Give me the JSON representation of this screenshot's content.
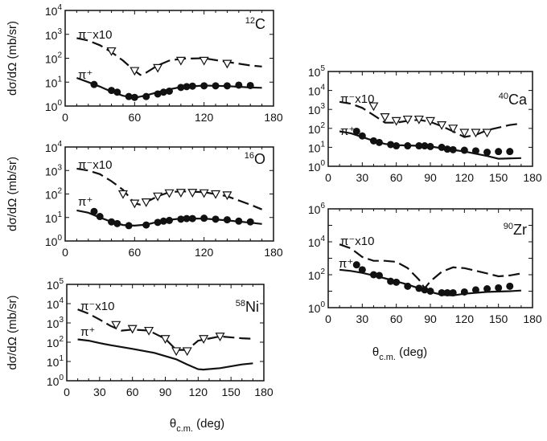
{
  "y_axis_label": "dσ/dΩ (mb/sr)",
  "x_axis_label_main": "θ",
  "x_axis_label_sub": "c.m.",
  "x_axis_label_unit": " (deg)",
  "pi_minus_label": "π⁻x10",
  "pi_plus_label": "π⁺",
  "chart_data": [
    {
      "type": "scatter",
      "nucleus_mass": "12",
      "nucleus_symbol": "C",
      "xlim": [
        0,
        180
      ],
      "xticks": [
        0,
        60,
        120,
        180
      ],
      "ylim": [
        1,
        10000
      ],
      "yscale": "log",
      "yticks_exp": [
        0,
        1,
        2,
        3,
        4
      ],
      "has_ylabel": true,
      "pi_plus_data": [
        [
          25,
          8
        ],
        [
          40,
          4.5
        ],
        [
          45,
          3.8
        ],
        [
          55,
          2.5
        ],
        [
          60,
          2.3
        ],
        [
          70,
          2.5
        ],
        [
          80,
          3.2
        ],
        [
          85,
          3.8
        ],
        [
          90,
          4.2
        ],
        [
          100,
          6
        ],
        [
          105,
          6.5
        ],
        [
          110,
          6.8
        ],
        [
          120,
          7
        ],
        [
          130,
          7
        ],
        [
          140,
          7
        ],
        [
          150,
          7.5
        ],
        [
          160,
          7.2
        ]
      ],
      "pi_plus_model": [
        [
          10,
          15
        ],
        [
          20,
          10
        ],
        [
          30,
          6.5
        ],
        [
          40,
          4
        ],
        [
          50,
          2.7
        ],
        [
          60,
          2.2
        ],
        [
          70,
          2.8
        ],
        [
          80,
          3.8
        ],
        [
          90,
          5
        ],
        [
          100,
          6.2
        ],
        [
          120,
          7.2
        ],
        [
          140,
          6.8
        ],
        [
          160,
          6
        ],
        [
          170,
          5.8
        ]
      ],
      "pi_minus_data": [
        [
          40,
          200
        ],
        [
          60,
          30
        ],
        [
          80,
          40
        ],
        [
          100,
          80
        ],
        [
          120,
          80
        ],
        [
          140,
          60
        ]
      ],
      "pi_minus_model": [
        [
          10,
          700
        ],
        [
          20,
          550
        ],
        [
          30,
          350
        ],
        [
          40,
          180
        ],
        [
          50,
          80
        ],
        [
          60,
          30
        ],
        [
          65,
          20
        ],
        [
          70,
          25
        ],
        [
          80,
          50
        ],
        [
          90,
          80
        ],
        [
          100,
          95
        ],
        [
          120,
          100
        ],
        [
          140,
          70
        ],
        [
          160,
          50
        ],
        [
          170,
          45
        ]
      ]
    },
    {
      "type": "scatter",
      "nucleus_mass": "16",
      "nucleus_symbol": "O",
      "xlim": [
        0,
        180
      ],
      "xticks": [
        0,
        60,
        120,
        180
      ],
      "ylim": [
        1,
        10000
      ],
      "yscale": "log",
      "yticks_exp": [
        0,
        1,
        2,
        3,
        4
      ],
      "has_ylabel": true,
      "pi_plus_data": [
        [
          25,
          18
        ],
        [
          30,
          11
        ],
        [
          40,
          6.5
        ],
        [
          45,
          5.5
        ],
        [
          55,
          4.5
        ],
        [
          70,
          4.8
        ],
        [
          80,
          6.2
        ],
        [
          85,
          7
        ],
        [
          90,
          7.5
        ],
        [
          100,
          8.5
        ],
        [
          105,
          9
        ],
        [
          110,
          9
        ],
        [
          120,
          9.3
        ],
        [
          130,
          8.5
        ],
        [
          140,
          8
        ],
        [
          150,
          7
        ],
        [
          160,
          6.5
        ]
      ],
      "pi_plus_model": [
        [
          10,
          20
        ],
        [
          20,
          16
        ],
        [
          30,
          10
        ],
        [
          40,
          6.5
        ],
        [
          50,
          4.8
        ],
        [
          60,
          4.5
        ],
        [
          70,
          5
        ],
        [
          80,
          6.5
        ],
        [
          90,
          8
        ],
        [
          100,
          9
        ],
        [
          120,
          9
        ],
        [
          140,
          7.5
        ],
        [
          160,
          6
        ],
        [
          170,
          5.3
        ]
      ],
      "pi_minus_data": [
        [
          50,
          100
        ],
        [
          60,
          40
        ],
        [
          70,
          45
        ],
        [
          80,
          80
        ],
        [
          90,
          110
        ],
        [
          100,
          115
        ],
        [
          110,
          115
        ],
        [
          120,
          110
        ],
        [
          130,
          100
        ],
        [
          140,
          90
        ]
      ],
      "pi_minus_model": [
        [
          10,
          1200
        ],
        [
          20,
          1000
        ],
        [
          30,
          700
        ],
        [
          40,
          350
        ],
        [
          50,
          150
        ],
        [
          60,
          40
        ],
        [
          65,
          35
        ],
        [
          70,
          45
        ],
        [
          80,
          80
        ],
        [
          90,
          120
        ],
        [
          100,
          130
        ],
        [
          120,
          120
        ],
        [
          140,
          80
        ],
        [
          160,
          35
        ],
        [
          170,
          22
        ]
      ]
    },
    {
      "type": "scatter",
      "nucleus_mass": "40",
      "nucleus_symbol": "Ca",
      "xlim": [
        0,
        180
      ],
      "xticks": [
        0,
        30,
        60,
        90,
        120,
        150,
        180
      ],
      "ylim": [
        1,
        100000
      ],
      "yscale": "log",
      "yticks_exp": [
        0,
        1,
        2,
        3,
        4,
        5
      ],
      "has_ylabel": false,
      "pi_plus_data": [
        [
          25,
          70
        ],
        [
          30,
          40
        ],
        [
          40,
          22
        ],
        [
          45,
          18
        ],
        [
          55,
          14
        ],
        [
          60,
          12
        ],
        [
          70,
          12
        ],
        [
          80,
          12
        ],
        [
          85,
          12
        ],
        [
          90,
          11
        ],
        [
          100,
          10
        ],
        [
          105,
          8
        ],
        [
          110,
          7.5
        ],
        [
          120,
          7
        ],
        [
          130,
          6.5
        ],
        [
          140,
          5.5
        ],
        [
          150,
          6
        ],
        [
          160,
          6
        ]
      ],
      "pi_plus_model": [
        [
          10,
          70
        ],
        [
          20,
          55
        ],
        [
          30,
          35
        ],
        [
          40,
          22
        ],
        [
          50,
          15
        ],
        [
          60,
          13
        ],
        [
          80,
          12
        ],
        [
          90,
          11
        ],
        [
          100,
          9
        ],
        [
          120,
          6
        ],
        [
          140,
          3.5
        ],
        [
          150,
          2.5
        ],
        [
          170,
          2.7
        ]
      ],
      "pi_minus_data": [
        [
          40,
          1500
        ],
        [
          50,
          400
        ],
        [
          60,
          250
        ],
        [
          70,
          300
        ],
        [
          80,
          300
        ],
        [
          90,
          250
        ],
        [
          100,
          150
        ],
        [
          110,
          100
        ],
        [
          120,
          60
        ],
        [
          130,
          60
        ],
        [
          140,
          60
        ]
      ],
      "pi_minus_model": [
        [
          10,
          2500
        ],
        [
          20,
          2000
        ],
        [
          30,
          1200
        ],
        [
          40,
          500
        ],
        [
          50,
          200
        ],
        [
          60,
          200
        ],
        [
          70,
          250
        ],
        [
          80,
          280
        ],
        [
          90,
          220
        ],
        [
          100,
          130
        ],
        [
          110,
          70
        ],
        [
          120,
          35
        ],
        [
          130,
          45
        ],
        [
          140,
          80
        ],
        [
          160,
          150
        ],
        [
          170,
          180
        ]
      ]
    },
    {
      "type": "scatter",
      "nucleus_mass": "90",
      "nucleus_symbol": "Zr",
      "xlim": [
        0,
        180
      ],
      "xticks": [
        0,
        30,
        60,
        90,
        120,
        150,
        180
      ],
      "ylim": [
        1,
        1000000
      ],
      "yscale": "log",
      "yticks_exp": [
        0,
        2,
        4,
        6
      ],
      "has_ylabel": false,
      "pi_plus_data": [
        [
          25,
          400
        ],
        [
          30,
          200
        ],
        [
          40,
          100
        ],
        [
          45,
          90
        ],
        [
          55,
          40
        ],
        [
          60,
          35
        ],
        [
          70,
          20
        ],
        [
          80,
          15
        ],
        [
          85,
          12
        ],
        [
          90,
          10
        ],
        [
          100,
          8
        ],
        [
          105,
          8
        ],
        [
          110,
          8
        ],
        [
          120,
          9
        ],
        [
          130,
          12
        ],
        [
          140,
          14
        ],
        [
          150,
          16
        ],
        [
          160,
          20
        ]
      ],
      "pi_plus_model": [
        [
          10,
          200
        ],
        [
          20,
          170
        ],
        [
          30,
          130
        ],
        [
          40,
          90
        ],
        [
          50,
          60
        ],
        [
          60,
          40
        ],
        [
          70,
          25
        ],
        [
          80,
          15
        ],
        [
          90,
          9
        ],
        [
          100,
          6
        ],
        [
          110,
          5.5
        ],
        [
          120,
          7
        ],
        [
          140,
          9
        ],
        [
          160,
          10
        ],
        [
          170,
          11
        ]
      ],
      "pi_minus_data": [],
      "pi_minus_model": [
        [
          10,
          7000
        ],
        [
          20,
          4000
        ],
        [
          30,
          1200
        ],
        [
          40,
          700
        ],
        [
          50,
          700
        ],
        [
          60,
          600
        ],
        [
          70,
          250
        ],
        [
          80,
          50
        ],
        [
          85,
          15
        ],
        [
          90,
          40
        ],
        [
          100,
          150
        ],
        [
          110,
          280
        ],
        [
          120,
          250
        ],
        [
          140,
          120
        ],
        [
          150,
          80
        ],
        [
          160,
          90
        ],
        [
          170,
          120
        ]
      ]
    },
    {
      "type": "scatter",
      "nucleus_mass": "58",
      "nucleus_symbol": "Ni",
      "xlim": [
        0,
        180
      ],
      "xticks": [
        0,
        30,
        60,
        90,
        120,
        150,
        180
      ],
      "ylim": [
        1,
        100000
      ],
      "yscale": "log",
      "yticks_exp": [
        0,
        1,
        2,
        3,
        4,
        5
      ],
      "has_ylabel": true,
      "pi_plus_data": [],
      "pi_plus_model": [
        [
          10,
          140
        ],
        [
          20,
          120
        ],
        [
          30,
          90
        ],
        [
          40,
          70
        ],
        [
          60,
          45
        ],
        [
          80,
          28
        ],
        [
          100,
          13
        ],
        [
          110,
          7
        ],
        [
          120,
          4
        ],
        [
          125,
          3.8
        ],
        [
          140,
          4.5
        ],
        [
          160,
          7
        ],
        [
          170,
          8
        ]
      ],
      "pi_minus_data": [
        [
          45,
          800
        ],
        [
          60,
          500
        ],
        [
          75,
          400
        ],
        [
          90,
          150
        ],
        [
          100,
          35
        ],
        [
          110,
          35
        ],
        [
          125,
          150
        ],
        [
          140,
          200
        ]
      ],
      "pi_minus_model": [
        [
          10,
          5000
        ],
        [
          20,
          3000
        ],
        [
          30,
          1500
        ],
        [
          40,
          700
        ],
        [
          50,
          400
        ],
        [
          60,
          450
        ],
        [
          75,
          400
        ],
        [
          90,
          150
        ],
        [
          100,
          40
        ],
        [
          110,
          40
        ],
        [
          120,
          120
        ],
        [
          140,
          200
        ],
        [
          160,
          160
        ],
        [
          170,
          150
        ]
      ]
    }
  ]
}
